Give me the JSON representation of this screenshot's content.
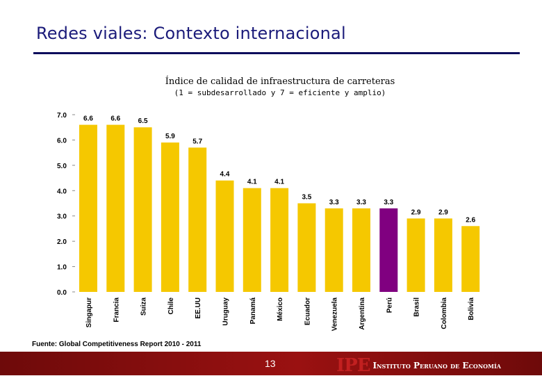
{
  "slide": {
    "title": "Redes viales: Contexto internacional",
    "source": "Fuente: Global Competitiveness Report 2010 - 2011",
    "page_number": "13",
    "logo_abbr": "IPE",
    "logo_name": "Instituto Peruano de Economía"
  },
  "colors": {
    "bar": "#f5c800",
    "highlight": "#800080",
    "title": "#1b1b7a"
  },
  "chart_data": {
    "type": "bar",
    "title": "Índice de calidad de infraestructura de carreteras",
    "subtitle": "(1 = subdesarrollado y 7 = eficiente y amplio)",
    "categories": [
      "Singapur",
      "Francia",
      "Suiza",
      "Chile",
      "EE.UU",
      "Uruguay",
      "Panamá",
      "México",
      "Ecuador",
      "Venezuela",
      "Argentina",
      "Perú",
      "Brasil",
      "Colombia",
      "Bolivia"
    ],
    "values": [
      6.6,
      6.6,
      6.5,
      5.9,
      5.7,
      4.4,
      4.1,
      4.1,
      3.5,
      3.3,
      3.3,
      3.3,
      2.9,
      2.9,
      2.6
    ],
    "value_labels": [
      "6.6",
      "6.6",
      "6.5",
      "5.9",
      "5.7",
      "4.4",
      "4.1",
      "4.1",
      "3.5",
      "3.3",
      "3.3",
      "3.3",
      "2.9",
      "2.9",
      "2.6"
    ],
    "highlight": "Perú",
    "yticks": [
      "0.0",
      "1.0",
      "2.0",
      "3.0",
      "4.0",
      "5.0",
      "6.0",
      "7.0"
    ],
    "ylim": [
      0,
      7
    ],
    "xlabel": "",
    "ylabel": "",
    "grid": false,
    "legend": "none"
  }
}
